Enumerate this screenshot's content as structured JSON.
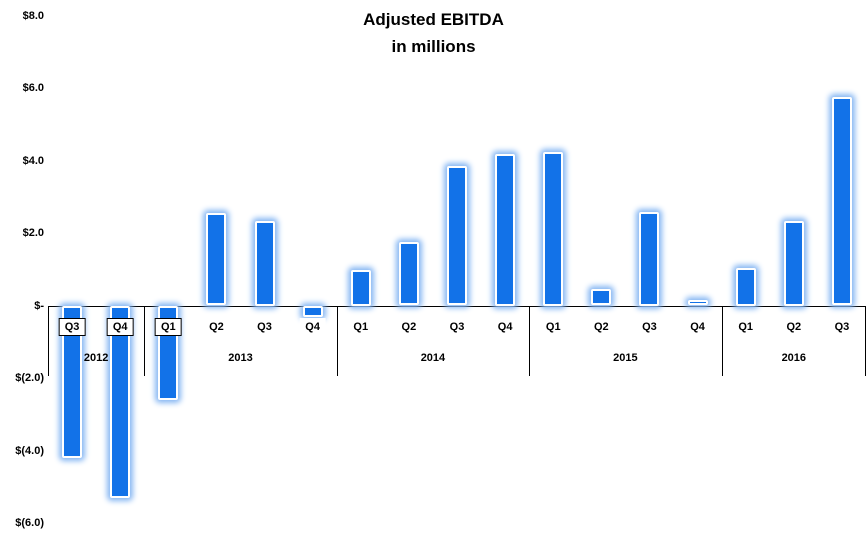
{
  "chart_data": {
    "type": "bar",
    "title": "Adjusted EBITDA",
    "subtitle": "in millions",
    "ylim": [
      -6,
      8
    ],
    "y_tick_step": 2,
    "y_tick_labels": [
      "$8.0",
      "$6.0",
      "$4.0",
      "$2.0",
      "$-",
      "$(2.0)",
      "$(4.0)",
      "$(6.0)"
    ],
    "grid": false,
    "legend": "none",
    "bar_color": "#1272e8",
    "bar_glow_color": "#85b6f3",
    "axis_color": "#000000",
    "groups": [
      {
        "year": "2012",
        "quarters": [
          {
            "label": "Q3",
            "value": -4.2
          },
          {
            "label": "Q4",
            "value": -5.3
          }
        ]
      },
      {
        "year": "2013",
        "quarters": [
          {
            "label": "Q1",
            "value": -2.6
          },
          {
            "label": "Q2",
            "value": 2.55
          },
          {
            "label": "Q3",
            "value": 2.35
          },
          {
            "label": "Q4",
            "value": -0.3
          }
        ]
      },
      {
        "year": "2014",
        "quarters": [
          {
            "label": "Q1",
            "value": 1.0
          },
          {
            "label": "Q2",
            "value": 1.75
          },
          {
            "label": "Q3",
            "value": 3.85
          },
          {
            "label": "Q4",
            "value": 4.2
          }
        ]
      },
      {
        "year": "2015",
        "quarters": [
          {
            "label": "Q1",
            "value": 4.25
          },
          {
            "label": "Q2",
            "value": 0.45
          },
          {
            "label": "Q3",
            "value": 2.6
          },
          {
            "label": "Q4",
            "value": 0.15
          }
        ]
      },
      {
        "year": "2016",
        "quarters": [
          {
            "label": "Q1",
            "value": 1.05
          },
          {
            "label": "Q2",
            "value": 2.35
          },
          {
            "label": "Q3",
            "value": 5.75
          }
        ]
      }
    ],
    "categories": [
      "2012 Q3",
      "2012 Q4",
      "2013 Q1",
      "2013 Q2",
      "2013 Q3",
      "2013 Q4",
      "2014 Q1",
      "2014 Q2",
      "2014 Q3",
      "2014 Q4",
      "2015 Q1",
      "2015 Q2",
      "2015 Q3",
      "2015 Q4",
      "2016 Q1",
      "2016 Q2",
      "2016 Q3"
    ],
    "values": [
      -4.2,
      -5.3,
      -2.6,
      2.55,
      2.35,
      -0.3,
      1.0,
      1.75,
      3.85,
      4.2,
      4.25,
      0.45,
      2.6,
      0.15,
      1.05,
      2.35,
      5.75
    ]
  }
}
